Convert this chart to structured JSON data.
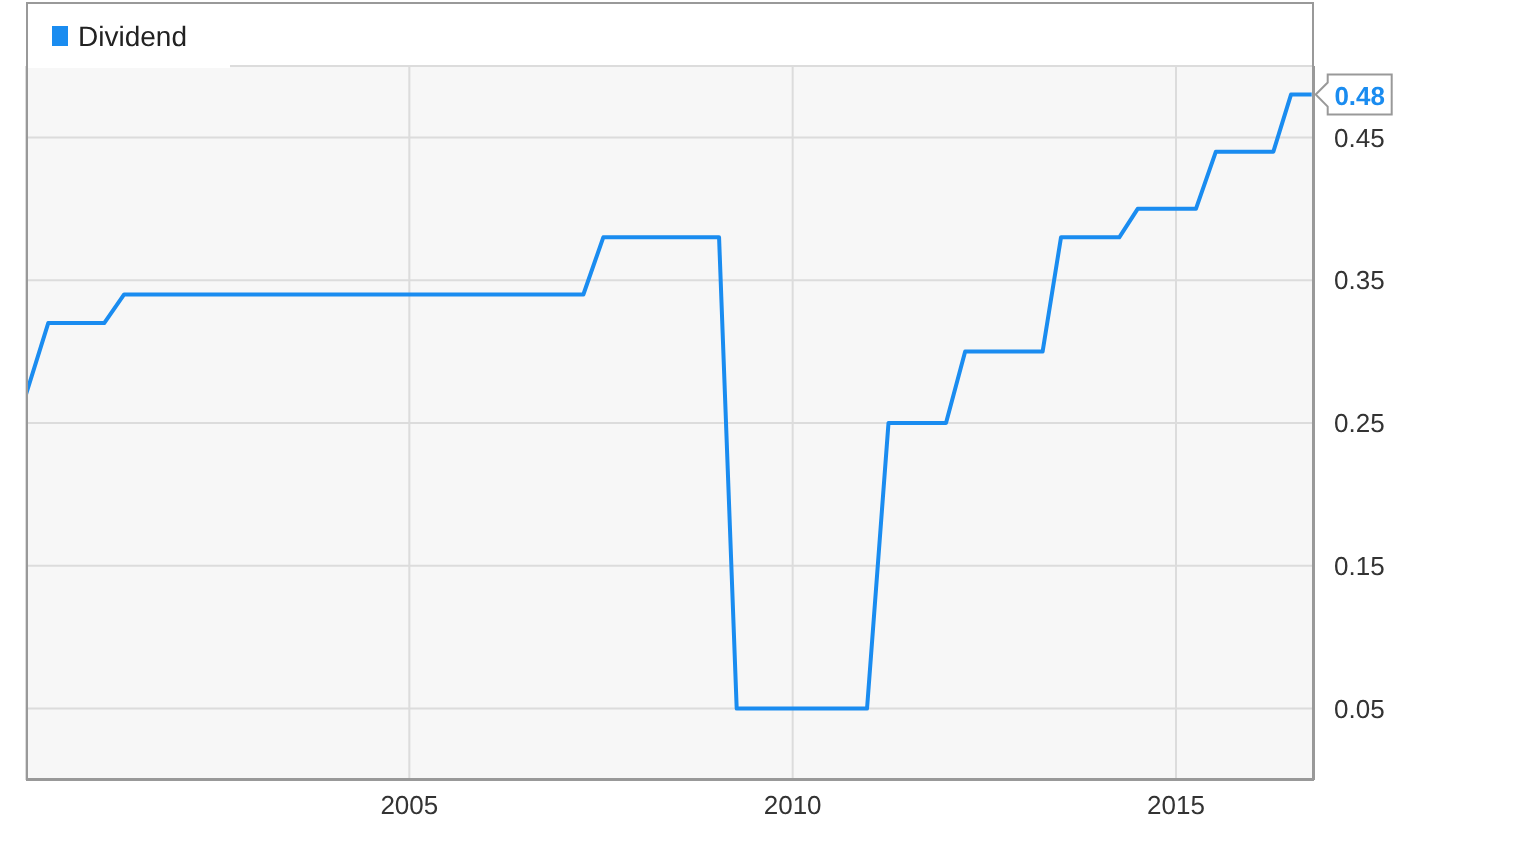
{
  "chart_data": {
    "type": "line",
    "x": [
      2000.0,
      2000.29,
      2001.02,
      2001.28,
      2007.27,
      2007.53,
      2009.04,
      2009.27,
      2010.97,
      2011.25,
      2012.0,
      2012.25,
      2013.26,
      2013.5,
      2014.26,
      2014.5,
      2015.26,
      2015.52,
      2016.27,
      2016.5,
      2016.77
    ],
    "series": [
      {
        "name": "Dividend",
        "color": "#1a8cf0",
        "values": [
          0.27,
          0.32,
          0.32,
          0.34,
          0.34,
          0.38,
          0.38,
          0.05,
          0.05,
          0.25,
          0.25,
          0.3,
          0.3,
          0.38,
          0.38,
          0.4,
          0.4,
          0.44,
          0.44,
          0.48,
          0.48
        ]
      }
    ],
    "xlim": [
      2000,
      2016.8
    ],
    "xticks": [
      2005,
      2010,
      2015
    ],
    "ylim": [
      0,
      0.5
    ],
    "yticks": [
      0.05,
      0.15,
      0.25,
      0.35,
      0.45
    ],
    "annotations": [
      {
        "text": "0.48",
        "x": 2016.77,
        "y": 0.48
      }
    ],
    "grid": true,
    "legend": "top left",
    "marker": "none",
    "line_style": "solid"
  }
}
